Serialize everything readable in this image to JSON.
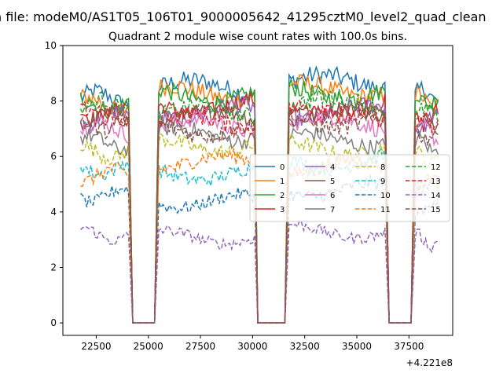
{
  "figure": {
    "suptitle": "n file: modeM0/AS1T05_106T01_9000005642_41295cztM0_level2_quad_clean",
    "title": "Quadrant 2 module wise count rates with 100.0s bins.",
    "offset_label": "+4.221e8"
  },
  "chart_data": {
    "type": "line",
    "title": "Quadrant 2 module wise count rates with 100.0s bins.",
    "xlabel": "",
    "ylabel": "",
    "x_offset": 422100000,
    "xlim": [
      20900,
      39600
    ],
    "ylim": [
      -0.45,
      10.0
    ],
    "xticks": [
      22500,
      25000,
      27500,
      30000,
      32500,
      35000,
      37500
    ],
    "yticks": [
      0,
      2,
      4,
      6,
      8,
      10
    ],
    "grid": false,
    "legend": {
      "placement": "center-right",
      "columns": 4
    },
    "segments": [
      {
        "x_start": 21750,
        "x_end": 24050,
        "drop_end": 24250,
        "gap_end": 25300,
        "rise_end": 25500
      },
      {
        "x_start": 25500,
        "x_end": 30050,
        "drop_end": 30250,
        "gap_end": 31550,
        "rise_end": 31750
      },
      {
        "x_start": 31750,
        "x_end": 36350,
        "drop_end": 36550,
        "gap_end": 37600,
        "rise_end": 37800
      },
      {
        "x_start": 37800,
        "x_end": 38850,
        "drop_end": null,
        "gap_end": null,
        "rise_end": null
      }
    ],
    "series": [
      {
        "name": "0",
        "color": "#1f77b4",
        "dash": "solid",
        "levels": [
          8.1,
          8.5,
          8.7,
          8.2
        ]
      },
      {
        "name": "1",
        "color": "#ff7f0e",
        "dash": "solid",
        "levels": [
          7.9,
          8.3,
          8.4,
          8.0
        ]
      },
      {
        "name": "2",
        "color": "#2ca02c",
        "dash": "solid",
        "levels": [
          7.9,
          8.2,
          8.3,
          8.1
        ]
      },
      {
        "name": "3",
        "color": "#d62728",
        "dash": "solid",
        "levels": [
          7.6,
          7.8,
          7.7,
          7.4
        ]
      },
      {
        "name": "4",
        "color": "#9467bd",
        "dash": "solid",
        "levels": [
          7.4,
          7.6,
          7.6,
          7.2
        ]
      },
      {
        "name": "5",
        "color": "#8c564b",
        "dash": "solid",
        "levels": [
          7.3,
          7.4,
          7.5,
          7.1
        ]
      },
      {
        "name": "6",
        "color": "#e377c2",
        "dash": "solid",
        "levels": [
          7.0,
          7.1,
          7.2,
          6.8
        ]
      },
      {
        "name": "7",
        "color": "#7f7f7f",
        "dash": "solid",
        "levels": [
          6.5,
          6.8,
          6.6,
          6.4
        ]
      },
      {
        "name": "8",
        "color": "#bcbd22",
        "dash": "dashed",
        "levels": [
          6.2,
          6.4,
          6.3,
          6.0
        ]
      },
      {
        "name": "9",
        "color": "#17becf",
        "dash": "dashed",
        "levels": [
          5.6,
          5.4,
          5.8,
          5.0
        ]
      },
      {
        "name": "10",
        "color": "#1f77b4",
        "dash": "dashed",
        "levels": [
          4.6,
          4.4,
          4.8,
          4.2
        ]
      },
      {
        "name": "11",
        "color": "#ff7f0e",
        "dash": "dashed",
        "levels": [
          5.3,
          5.8,
          5.6,
          5.0
        ]
      },
      {
        "name": "12",
        "color": "#2ca02c",
        "dash": "dashed",
        "levels": [
          7.8,
          7.6,
          7.9,
          7.5
        ]
      },
      {
        "name": "13",
        "color": "#d62728",
        "dash": "dashed",
        "levels": [
          7.5,
          7.3,
          7.6,
          7.2
        ]
      },
      {
        "name": "14",
        "color": "#9467bd",
        "dash": "dashed",
        "levels": [
          3.2,
          3.1,
          3.3,
          3.0
        ]
      },
      {
        "name": "15",
        "color": "#8c564b",
        "dash": "dashed",
        "levels": [
          7.2,
          7.0,
          7.3,
          6.9
        ]
      }
    ]
  }
}
